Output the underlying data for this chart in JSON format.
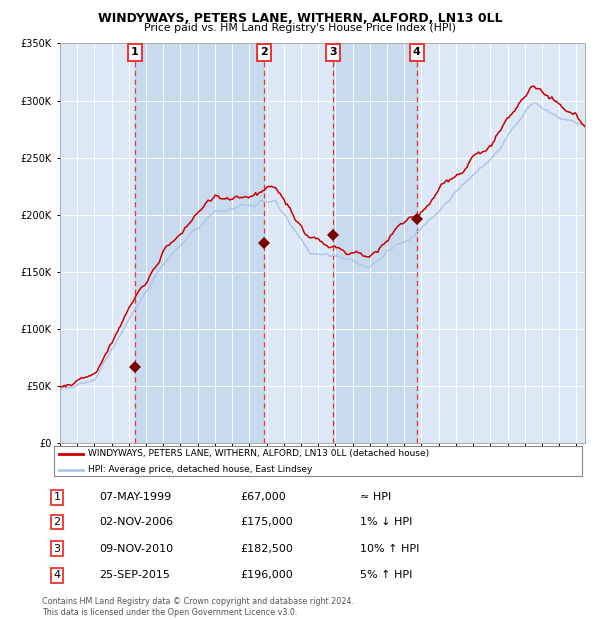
{
  "title": "WINDYWAYS, PETERS LANE, WITHERN, ALFORD, LN13 0LL",
  "subtitle": "Price paid vs. HM Land Registry's House Price Index (HPI)",
  "legend_line1": "WINDYWAYS, PETERS LANE, WITHERN, ALFORD, LN13 0LL (detached house)",
  "legend_line2": "HPI: Average price, detached house, East Lindsey",
  "footer_line1": "Contains HM Land Registry data © Crown copyright and database right 2024.",
  "footer_line2": "This data is licensed under the Open Government Licence v3.0.",
  "sale_dates": [
    "07-MAY-1999",
    "02-NOV-2006",
    "09-NOV-2010",
    "25-SEP-2015"
  ],
  "sale_prices": [
    67000,
    175000,
    182500,
    196000
  ],
  "sale_hpi_notes": [
    "≈ HPI",
    "1% ↓ HPI",
    "10% ↑ HPI",
    "5% ↑ HPI"
  ],
  "vline_years": [
    1999.35,
    2006.84,
    2010.86,
    2015.73
  ],
  "hpi_line_color": "#aec6e8",
  "price_line_color": "#cc0000",
  "sale_marker_color": "#7a0000",
  "vline_color": "#ee3333",
  "plot_bg_color": "#dce8f5",
  "ylim": [
    0,
    350000
  ],
  "xlim_start": 1995.0,
  "xlim_end": 2025.5,
  "yticks": [
    0,
    50000,
    100000,
    150000,
    200000,
    250000,
    300000,
    350000
  ]
}
